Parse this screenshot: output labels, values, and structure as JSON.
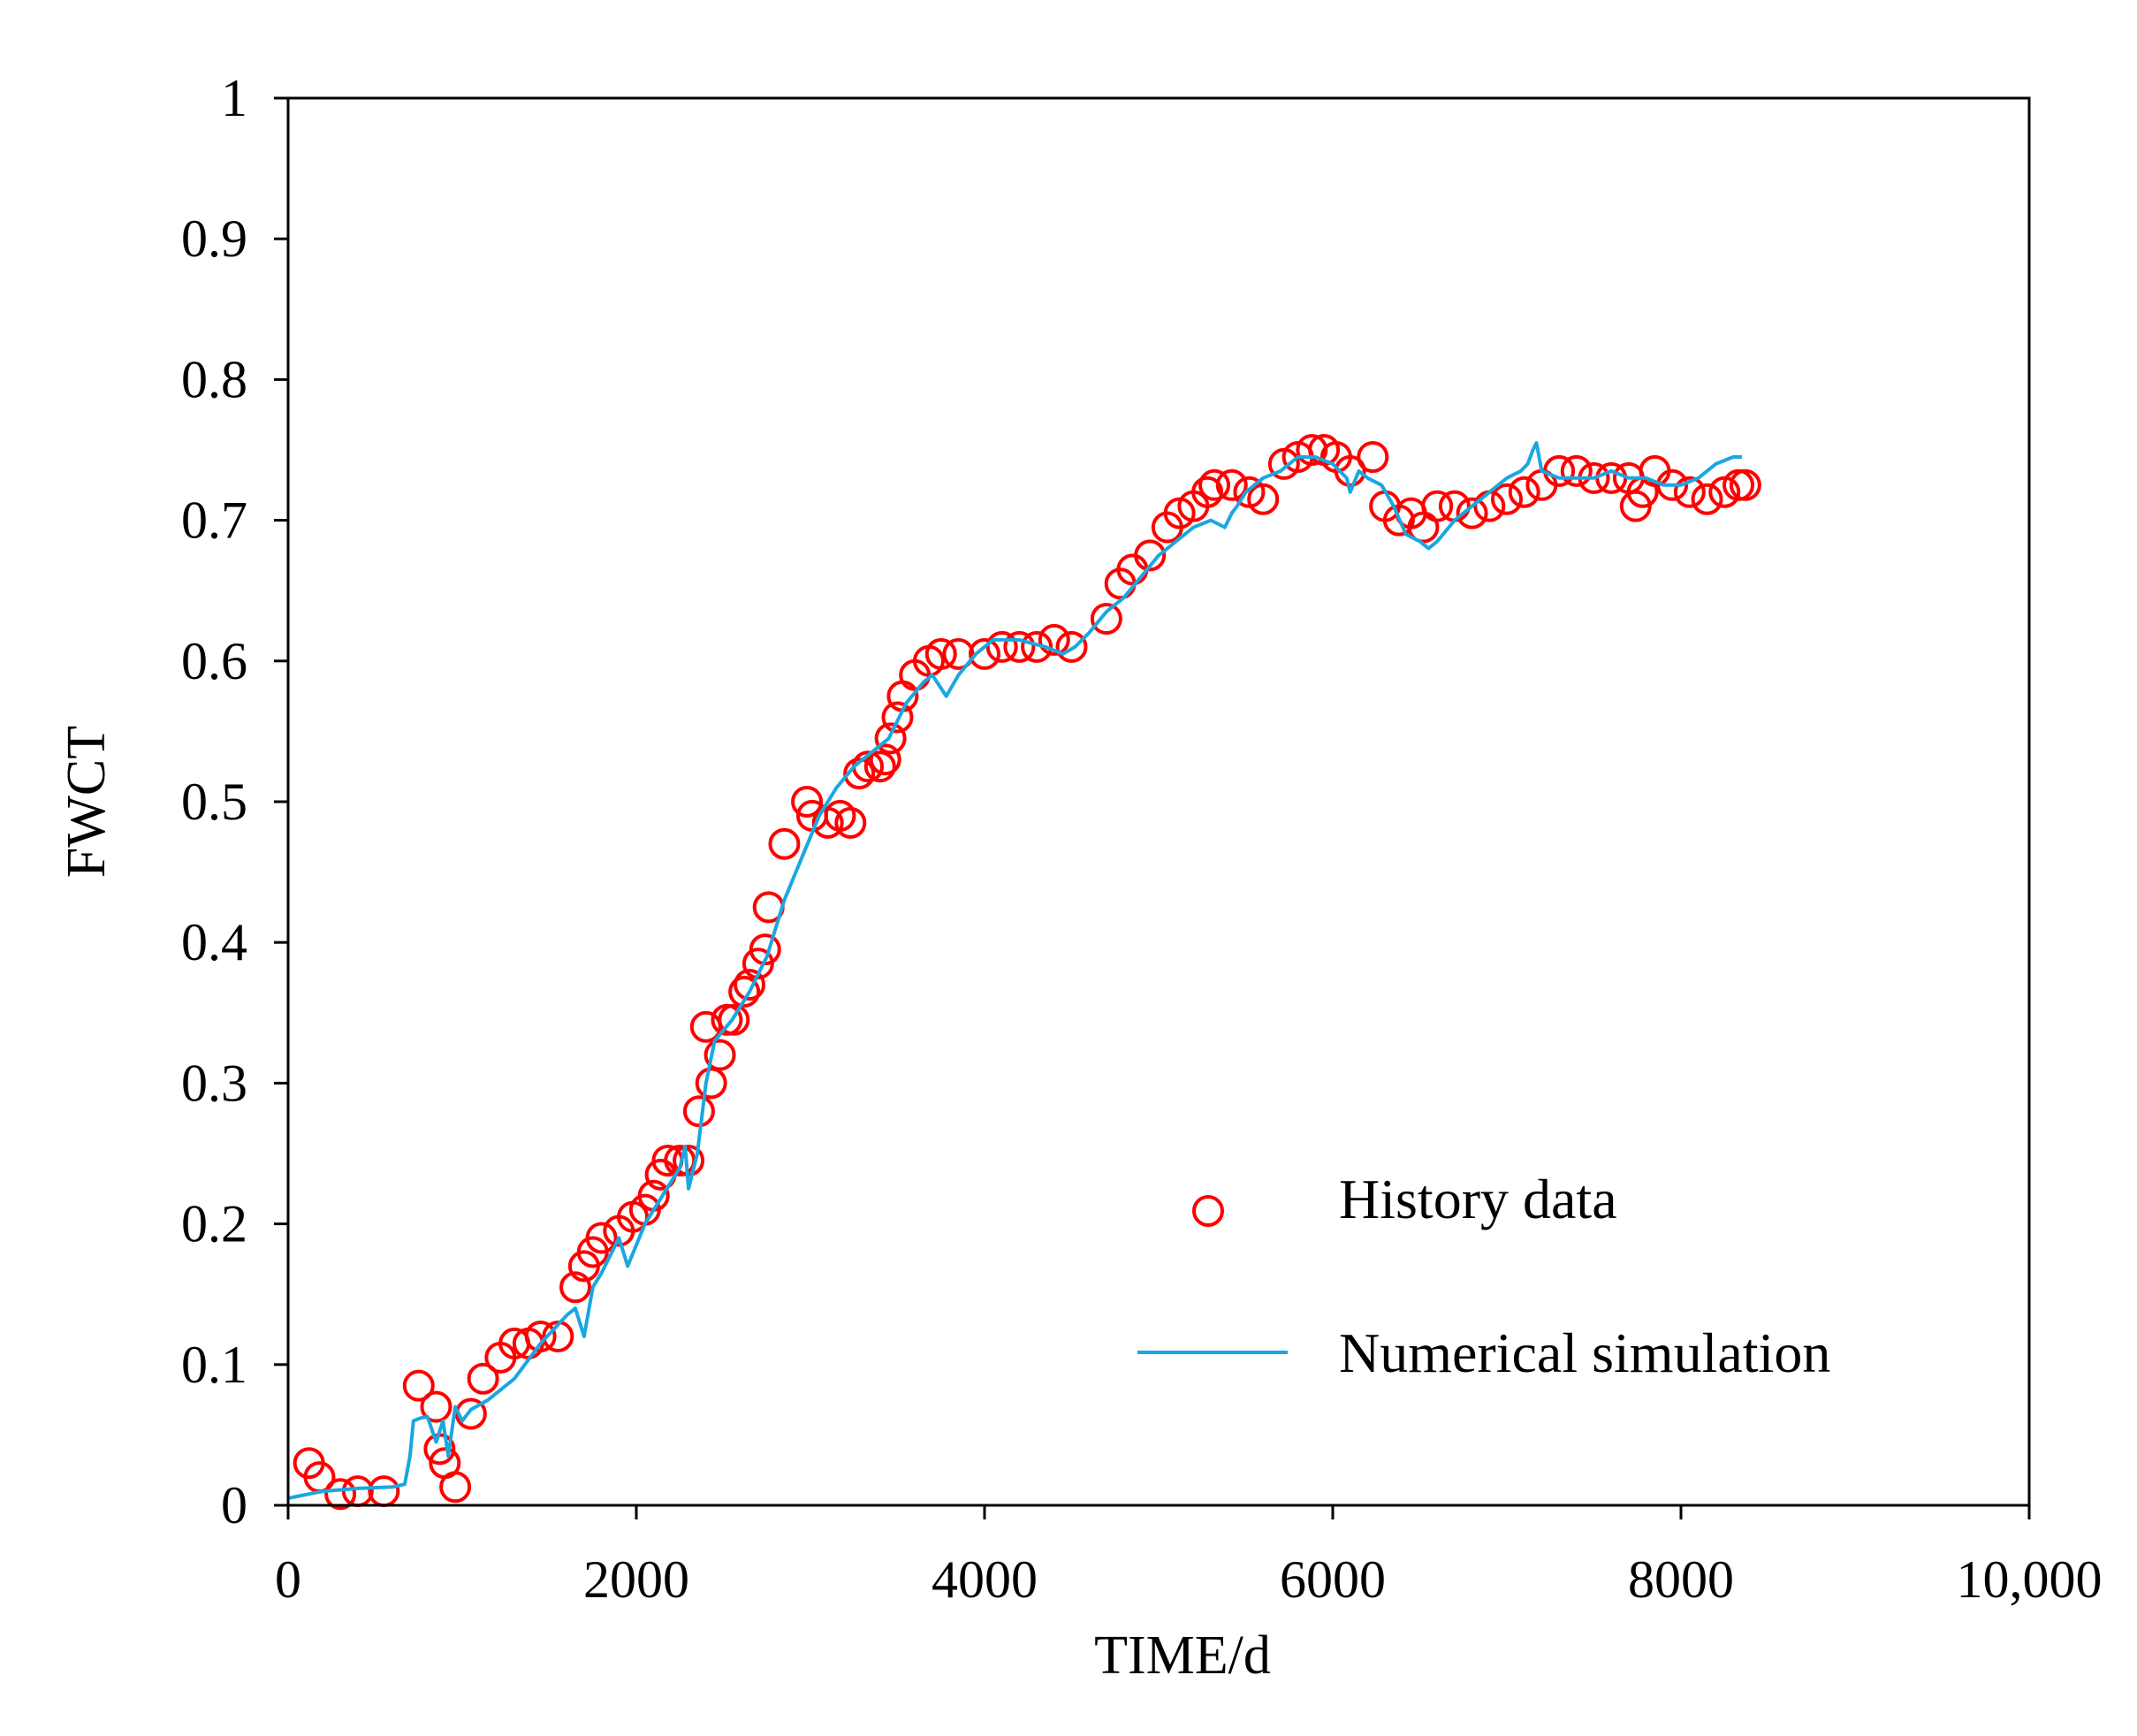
{
  "chart_data": {
    "type": "scatter",
    "title": "",
    "xlabel": "TIME/d",
    "ylabel": "FWCT",
    "xlim": [
      0,
      10000
    ],
    "ylim": [
      0,
      1
    ],
    "xticks": [
      0,
      2000,
      4000,
      6000,
      8000,
      10000
    ],
    "xtick_labels": [
      "0",
      "2000",
      "4000",
      "6000",
      "8000",
      "10,000"
    ],
    "yticks": [
      0,
      0.1,
      0.2,
      0.3,
      0.4,
      0.5,
      0.6,
      0.7,
      0.8,
      0.9,
      1
    ],
    "ytick_labels": [
      "0",
      "0.1",
      "0.2",
      "0.3",
      "0.4",
      "0.5",
      "0.6",
      "0.7",
      "0.8",
      "0.9",
      "1"
    ],
    "grid": false,
    "legend_position": "bottom-right",
    "series": [
      {
        "name": "History data",
        "kind": "scatter",
        "marker": "open-circle",
        "color": "#ff0000",
        "x": [
          120,
          180,
          300,
          400,
          550,
          750,
          850,
          870,
          900,
          960,
          1050,
          1120,
          1220,
          1300,
          1380,
          1450,
          1550,
          1650,
          1700,
          1750,
          1800,
          1900,
          1980,
          2050,
          2100,
          2140,
          2180,
          2250,
          2300,
          2360,
          2400,
          2430,
          2480,
          2520,
          2560,
          2620,
          2650,
          2700,
          2740,
          2760,
          2850,
          2980,
          3010,
          3100,
          3170,
          3230,
          3280,
          3330,
          3400,
          3430,
          3460,
          3500,
          3530,
          3600,
          3680,
          3750,
          3850,
          4000,
          4100,
          4200,
          4300,
          4400,
          4500,
          4700,
          4780,
          4850,
          4950,
          5050,
          5120,
          5200,
          5280,
          5320,
          5420,
          5520,
          5600,
          5720,
          5800,
          5880,
          5950,
          6020,
          6100,
          6230,
          6300,
          6380,
          6450,
          6520,
          6600,
          6700,
          6800,
          6900,
          7000,
          7100,
          7200,
          7300,
          7400,
          7500,
          7600,
          7700,
          7740,
          7780,
          7850,
          7950,
          8050,
          8150,
          8250,
          8330,
          8370
        ],
        "y": [
          0.03,
          0.02,
          0.008,
          0.01,
          0.01,
          0.085,
          0.07,
          0.04,
          0.03,
          0.013,
          0.065,
          0.09,
          0.105,
          0.115,
          0.115,
          0.12,
          0.12,
          0.155,
          0.17,
          0.18,
          0.19,
          0.195,
          0.205,
          0.21,
          0.22,
          0.235,
          0.245,
          0.245,
          0.245,
          0.28,
          0.34,
          0.3,
          0.32,
          0.345,
          0.345,
          0.365,
          0.37,
          0.385,
          0.395,
          0.425,
          0.47,
          0.5,
          0.49,
          0.485,
          0.49,
          0.485,
          0.52,
          0.525,
          0.525,
          0.53,
          0.545,
          0.56,
          0.575,
          0.59,
          0.6,
          0.605,
          0.605,
          0.605,
          0.61,
          0.61,
          0.61,
          0.615,
          0.61,
          0.63,
          0.655,
          0.665,
          0.675,
          0.695,
          0.705,
          0.71,
          0.72,
          0.725,
          0.725,
          0.72,
          0.715,
          0.74,
          0.745,
          0.75,
          0.75,
          0.745,
          0.735,
          0.745,
          0.71,
          0.7,
          0.705,
          0.695,
          0.71,
          0.71,
          0.705,
          0.71,
          0.715,
          0.72,
          0.725,
          0.735,
          0.735,
          0.73,
          0.73,
          0.73,
          0.71,
          0.72,
          0.735,
          0.725,
          0.72,
          0.715,
          0.72,
          0.725,
          0.725
        ]
      },
      {
        "name": "Numerical simulation",
        "kind": "line",
        "color": "#1aa7e0",
        "x": [
          0,
          200,
          400,
          600,
          670,
          700,
          720,
          760,
          800,
          850,
          890,
          920,
          960,
          1000,
          1050,
          1150,
          1300,
          1450,
          1600,
          1650,
          1700,
          1750,
          1800,
          1900,
          1950,
          2050,
          2150,
          2250,
          2280,
          2300,
          2350,
          2400,
          2450,
          2550,
          2650,
          2750,
          2850,
          2950,
          3050,
          3150,
          3250,
          3300,
          3350,
          3450,
          3550,
          3650,
          3700,
          3780,
          3850,
          3950,
          4050,
          4200,
          4350,
          4450,
          4520,
          4600,
          4700,
          4800,
          4900,
          5000,
          5100,
          5200,
          5300,
          5380,
          5420,
          5450,
          5500,
          5600,
          5700,
          5800,
          5900,
          6000,
          6080,
          6100,
          6150,
          6200,
          6280,
          6350,
          6420,
          6500,
          6550,
          6600,
          6700,
          6800,
          6900,
          7000,
          7080,
          7120,
          7150,
          7170,
          7200,
          7300,
          7400,
          7500,
          7600,
          7700,
          7800,
          7900,
          8000,
          8100,
          8200,
          8300,
          8350
        ],
        "y": [
          0.005,
          0.01,
          0.012,
          0.013,
          0.015,
          0.035,
          0.06,
          0.062,
          0.063,
          0.045,
          0.06,
          0.035,
          0.07,
          0.06,
          0.068,
          0.075,
          0.09,
          0.115,
          0.135,
          0.14,
          0.12,
          0.155,
          0.165,
          0.19,
          0.17,
          0.2,
          0.22,
          0.24,
          0.255,
          0.225,
          0.25,
          0.3,
          0.33,
          0.345,
          0.365,
          0.39,
          0.43,
          0.46,
          0.49,
          0.51,
          0.525,
          0.53,
          0.535,
          0.545,
          0.57,
          0.585,
          0.59,
          0.575,
          0.59,
          0.605,
          0.615,
          0.615,
          0.61,
          0.605,
          0.61,
          0.62,
          0.635,
          0.645,
          0.66,
          0.675,
          0.685,
          0.695,
          0.7,
          0.695,
          0.705,
          0.71,
          0.72,
          0.73,
          0.735,
          0.745,
          0.745,
          0.74,
          0.73,
          0.72,
          0.735,
          0.73,
          0.725,
          0.71,
          0.69,
          0.685,
          0.68,
          0.685,
          0.7,
          0.71,
          0.72,
          0.73,
          0.735,
          0.74,
          0.75,
          0.755,
          0.735,
          0.73,
          0.73,
          0.73,
          0.735,
          0.73,
          0.73,
          0.725,
          0.725,
          0.73,
          0.74,
          0.745,
          0.745
        ]
      }
    ]
  }
}
